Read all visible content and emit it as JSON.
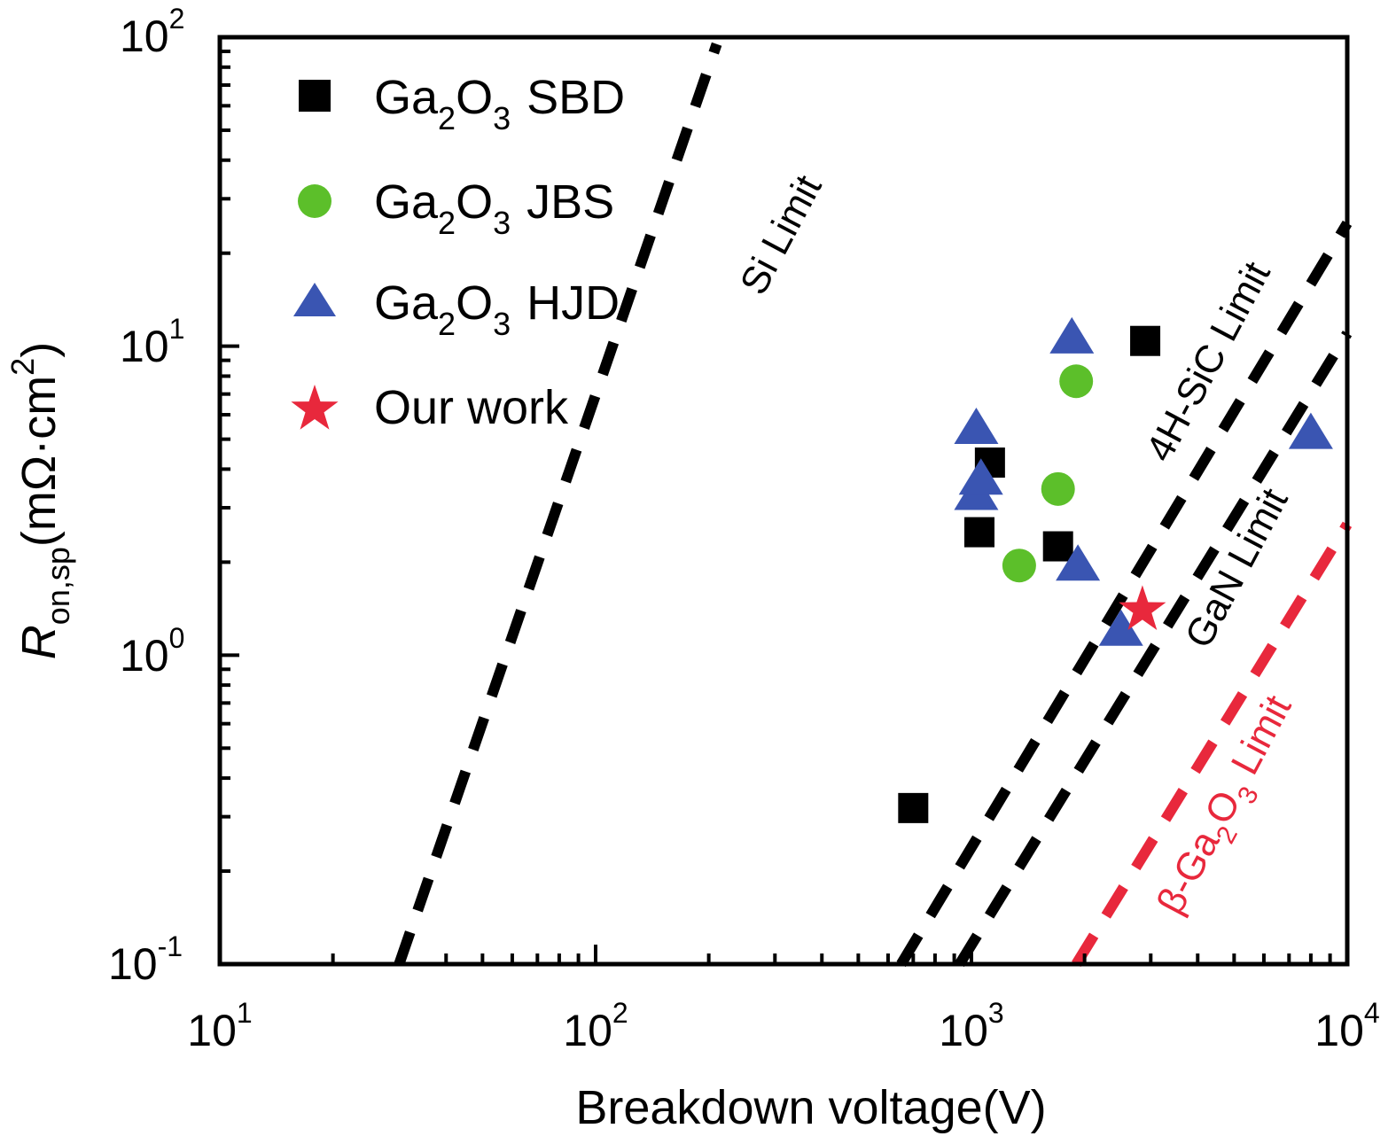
{
  "chart_data": {
    "type": "scatter",
    "xlabel": "Breakdown voltage(V)",
    "ylabel": {
      "symbol": "R",
      "subscript": "on,sp",
      "unit_main": "(mΩ·cm",
      "unit_sup": "2",
      "unit_close": ")"
    },
    "xscale": "log",
    "yscale": "log",
    "xlim": [
      10,
      10000
    ],
    "ylim": [
      0.1,
      100
    ],
    "xticks": [
      {
        "value": 10,
        "base": "10",
        "exp": "1"
      },
      {
        "value": 100,
        "base": "10",
        "exp": "2"
      },
      {
        "value": 1000,
        "base": "10",
        "exp": "3"
      },
      {
        "value": 10000,
        "base": "10",
        "exp": "4"
      }
    ],
    "yticks": [
      {
        "value": 0.1,
        "base": "10",
        "exp": "-1"
      },
      {
        "value": 1,
        "base": "10",
        "exp": "0"
      },
      {
        "value": 10,
        "base": "10",
        "exp": "1"
      },
      {
        "value": 100,
        "base": "10",
        "exp": "2"
      }
    ],
    "legend_position": "top-left",
    "series": [
      {
        "name": {
          "a": "Ga",
          "s1": "2",
          "b": "O",
          "s2": "3",
          "c": "SBD"
        },
        "marker": "square",
        "color": "#000000",
        "points": [
          [
            700,
            0.32
          ],
          [
            1050,
            2.5
          ],
          [
            1120,
            4.2
          ],
          [
            1700,
            2.25
          ],
          [
            2900,
            10.4
          ]
        ]
      },
      {
        "name": {
          "a": "Ga",
          "s1": "2",
          "b": "O",
          "s2": "3",
          "c": "JBS"
        },
        "marker": "circle",
        "color": "#5cbf2a",
        "points": [
          [
            1340,
            1.95
          ],
          [
            1700,
            3.45
          ],
          [
            1900,
            7.7
          ]
        ]
      },
      {
        "name": {
          "a": "Ga",
          "s1": "2",
          "b": "O",
          "s2": "3",
          "c": "HJD"
        },
        "marker": "triangle",
        "color": "#3a55b2",
        "points": [
          [
            1030,
            5.4
          ],
          [
            1030,
            3.3
          ],
          [
            1060,
            3.7
          ],
          [
            1850,
            10.6
          ],
          [
            1920,
            1.95
          ],
          [
            2500,
            1.2
          ],
          [
            8000,
            5.2
          ]
        ]
      },
      {
        "name": {
          "a": "Our work"
        },
        "marker": "star",
        "color": "#e8283c",
        "points": [
          [
            2850,
            1.4
          ]
        ]
      }
    ],
    "limit_lines": [
      {
        "label": "Si Limit",
        "color": "#000000",
        "from": [
          30,
          0.1
        ],
        "to": [
          210,
          95
        ]
      },
      {
        "label": "4H-SiC Limit",
        "color": "#000000",
        "from": [
          650,
          0.1
        ],
        "to": [
          10000,
          25
        ]
      },
      {
        "label": "GaN Limit",
        "color": "#000000",
        "from": [
          930,
          0.1
        ],
        "to": [
          10000,
          11
        ]
      },
      {
        "label": {
          "a": "β-Ga",
          "s1": "2",
          "b": "O",
          "s2": "3",
          "c": " Limit"
        },
        "color": "#e8283c",
        "from": [
          1900,
          0.1
        ],
        "to": [
          10000,
          2.65
        ]
      }
    ]
  }
}
